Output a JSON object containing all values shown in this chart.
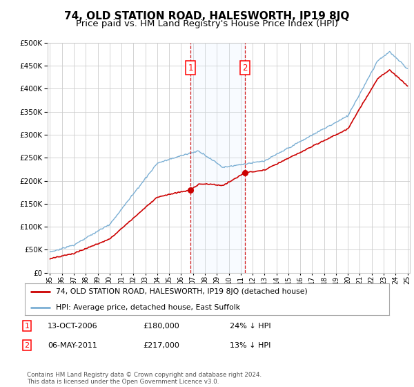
{
  "title": "74, OLD STATION ROAD, HALESWORTH, IP19 8JQ",
  "subtitle": "Price paid vs. HM Land Registry's House Price Index (HPI)",
  "ylim": [
    0,
    500000
  ],
  "yticks": [
    0,
    50000,
    100000,
    150000,
    200000,
    250000,
    300000,
    350000,
    400000,
    450000,
    500000
  ],
  "xlim_start": 1995,
  "xlim_end": 2025,
  "hpi_color": "#7bafd4",
  "price_color": "#cc0000",
  "sale1_year": 2006.79,
  "sale1_price": 180000,
  "sale2_year": 2011.35,
  "sale2_price": 217000,
  "background_color": "#ffffff",
  "grid_color": "#cccccc",
  "shade_color": "#ddeeff",
  "legend_line1": "74, OLD STATION ROAD, HALESWORTH, IP19 8JQ (detached house)",
  "legend_line2": "HPI: Average price, detached house, East Suffolk",
  "footer": "Contains HM Land Registry data © Crown copyright and database right 2024.\nThis data is licensed under the Open Government Licence v3.0.",
  "title_fontsize": 11,
  "subtitle_fontsize": 9.5
}
